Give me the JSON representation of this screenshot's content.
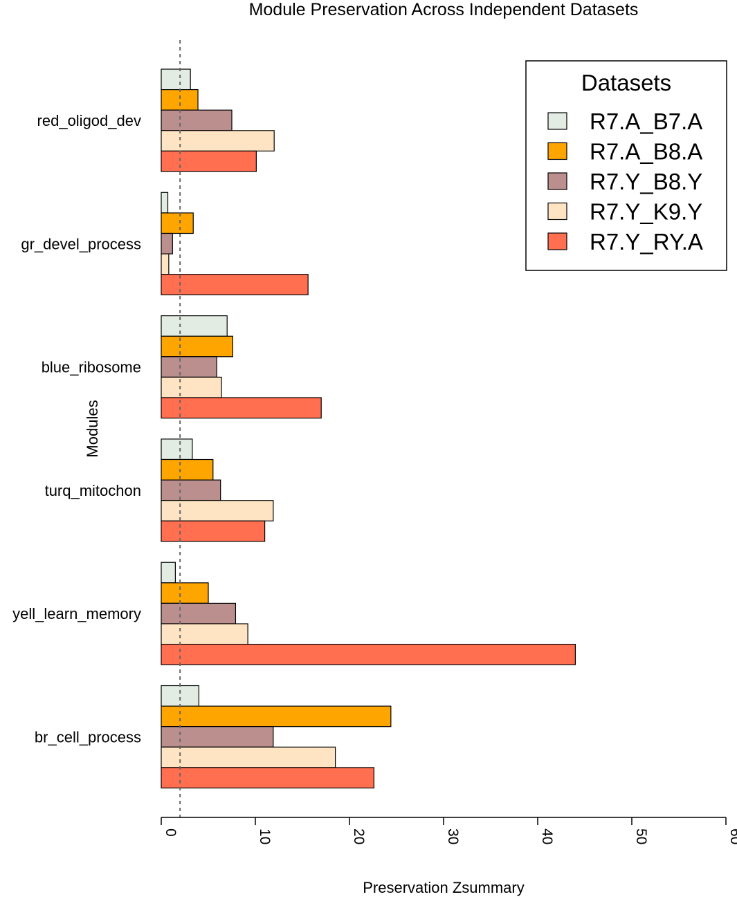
{
  "chart_data": {
    "type": "bar",
    "orientation": "horizontal",
    "title": "Module Preservation Across Independent Datasets",
    "xlabel": "Preservation Zsummary",
    "ylabel": "Modules",
    "xlim": [
      0,
      60
    ],
    "xticks": [
      "0",
      "10",
      "20",
      "30",
      "40",
      "50",
      "60"
    ],
    "xtick_values": [
      0,
      10,
      20,
      30,
      40,
      50,
      60
    ],
    "reference_line": 2,
    "grid": false,
    "legend": {
      "title": "Datasets",
      "position": "top-right"
    },
    "categories": [
      "red_oligod_dev",
      "gr_devel_process",
      "blue_ribosome",
      "turq_mitochon",
      "yell_learn_memory",
      "br_cell_process"
    ],
    "series": [
      {
        "name": "R7.A_B7.A",
        "color": "#e2ece2",
        "values": [
          3.1,
          0.7,
          7.0,
          3.3,
          1.5,
          4.0
        ]
      },
      {
        "name": "R7.A_B8.A",
        "color": "#ffa500",
        "values": [
          3.9,
          3.4,
          7.6,
          5.5,
          5.0,
          24.4
        ]
      },
      {
        "name": "R7.Y_B8.Y",
        "color": "#bc8f8f",
        "values": [
          7.5,
          1.2,
          5.9,
          6.3,
          7.9,
          11.9
        ]
      },
      {
        "name": "R7.Y_K9.Y",
        "color": "#ffe4c4",
        "values": [
          12.0,
          0.8,
          6.4,
          11.9,
          9.2,
          18.5
        ]
      },
      {
        "name": "R7.Y_RY.A",
        "color": "#ff6f50",
        "values": [
          10.1,
          15.6,
          17.0,
          11.0,
          44.0,
          22.6
        ]
      }
    ]
  }
}
